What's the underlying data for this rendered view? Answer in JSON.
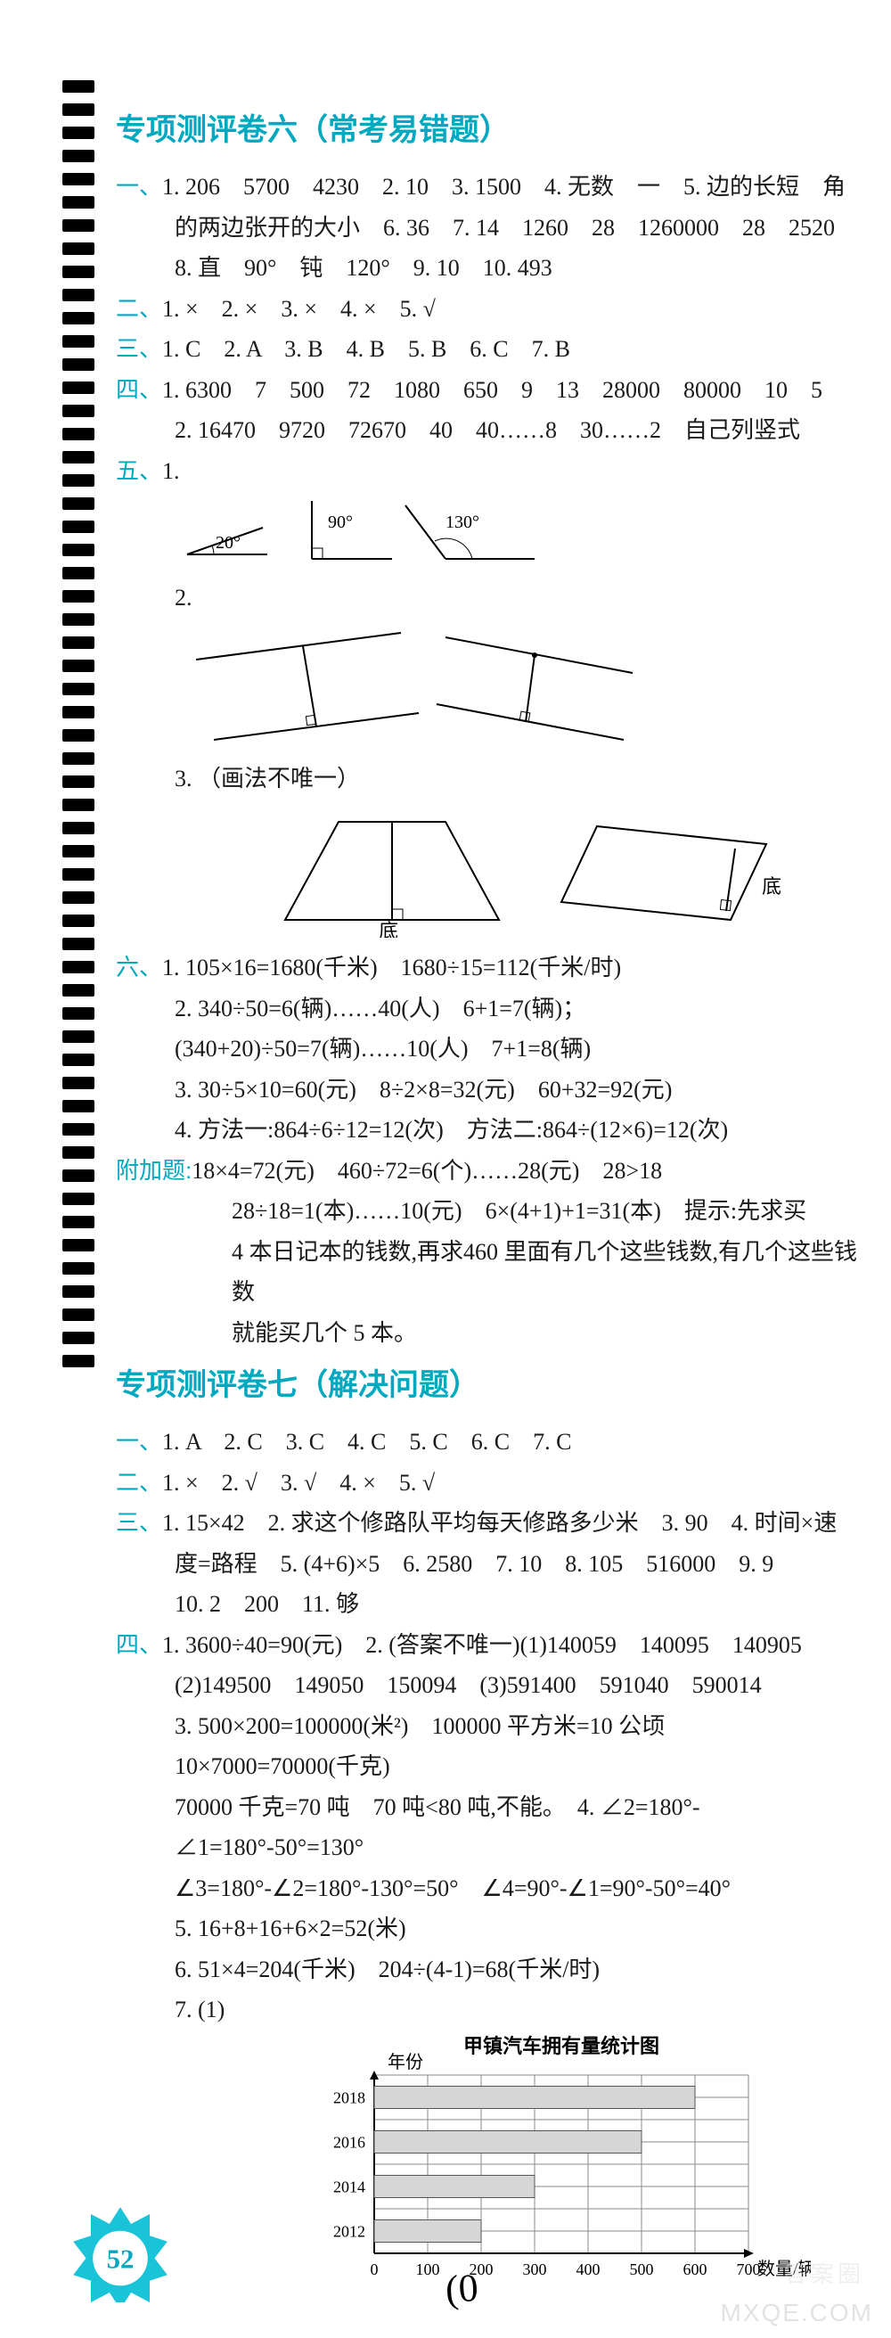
{
  "colors": {
    "accent": "#00a8c0",
    "text": "#1a1a1a",
    "bg": "#ffffff",
    "watermark": "#cccccc",
    "shade": "#d6d6d6"
  },
  "section6": {
    "title": "专项测评卷六（常考易错题）",
    "q1": {
      "label": "一、",
      "l1": "1. 206　5700　4230　2. 10　3. 1500　4. 无数　一　5. 边的长短　角",
      "l2": "的两边张开的大小　6. 36　7. 14　1260　28　1260000　28　2520",
      "l3": "8. 直　90°　钝　120°　9. 10　10. 493"
    },
    "q2": {
      "label": "二、",
      "text": "1. ×　2. ×　3. ×　4. ×　5. √"
    },
    "q3": {
      "label": "三、",
      "text": "1. C　2. A　3. B　4. B　5. B　6. C　7. B"
    },
    "q4": {
      "label": "四、",
      "l1": "1. 6300　7　500　72　1080　650　9　13　28000　80000　10　5",
      "l2": "2. 16470　9720　72670　40　40……8　30……2　自己列竖式"
    },
    "q5": {
      "label": "五、",
      "item1": "1.",
      "angles": {
        "a1": "20°",
        "a2": "90°",
        "a3": "130°"
      },
      "item2": "2.",
      "item3": "3. （画法不唯一）",
      "base": "底"
    },
    "q6": {
      "label": "六、",
      "l1": "1. 105×16=1680(千米)　1680÷15=112(千米/时)",
      "l2": "2. 340÷50=6(辆)……40(人)　6+1=7(辆)；",
      "l3": "(340+20)÷50=7(辆)……10(人)　7+1=8(辆)",
      "l4": "3. 30÷5×10=60(元)　8÷2×8=32(元)　60+32=92(元)",
      "l5": "4. 方法一:864÷6÷12=12(次)　方法二:864÷(12×6)=12(次)"
    },
    "extra": {
      "label": "附加题:",
      "l1": "18×4=72(元)　460÷72=6(个)……28(元)　28>18",
      "l2": "28÷18=1(本)……10(元)　6×(4+1)+1=31(本)　提示:先求买",
      "l3": "4 本日记本的钱数,再求460 里面有几个这些钱数,有几个这些钱数",
      "l4": "就能买几个 5 本。"
    }
  },
  "section7": {
    "title": "专项测评卷七（解决问题）",
    "q1": {
      "label": "一、",
      "text": "1. A　2. C　3. C　4. C　5. C　6. C　7. C"
    },
    "q2": {
      "label": "二、",
      "text": "1. ×　2. √　3. √　4. ×　5. √"
    },
    "q3": {
      "label": "三、",
      "l1": "1. 15×42　2. 求这个修路队平均每天修路多少米　3. 90　4. 时间×速",
      "l2": "度=路程　5. (4+6)×5　6. 2580　7. 10　8. 105　516000　9. 9",
      "l3": "10. 2　200　11. 够"
    },
    "q4": {
      "label": "四、",
      "l1": "1. 3600÷40=90(元)　2. (答案不唯一)(1)140059　140095　140905",
      "l2": "(2)149500　149050　150094　(3)591400　591040　590014",
      "l3": "3. 500×200=100000(米²)　100000 平方米=10 公顷　10×7000=70000(千克)",
      "l4": "70000 千克=70 吨　70 吨<80 吨,不能。　4. ∠2=180°-∠1=180°-50°=130°",
      "l5": "∠3=180°-∠2=180°-130°=50°　∠4=90°-∠1=90°-50°=40°",
      "l6": "5. 16+8+16+6×2=52(米)",
      "l7": "6. 51×4=204(千米)　204÷(4-1)=68(千米/时)",
      "l8": "7. (1)"
    },
    "chart": {
      "title": "甲镇汽车拥有量统计图",
      "ylabel": "年份",
      "xlabel": "数量/辆",
      "x_ticks": [
        "0",
        "100",
        "200",
        "300",
        "400",
        "500",
        "600",
        "700"
      ],
      "y_ticks": [
        "2018",
        "2016",
        "2014",
        "2012"
      ],
      "xlim": [
        0,
        700
      ],
      "xtick_step": 100,
      "bars": [
        {
          "year": "2018",
          "value": 600
        },
        {
          "year": "2016",
          "value": 500
        },
        {
          "year": "2014",
          "value": 300
        },
        {
          "year": "2012",
          "value": 200
        }
      ],
      "bar_fill": "#d6d6d6",
      "grid_color": "#888888",
      "bg": "#ffffff"
    }
  },
  "badge_number": "52",
  "handwritten": "(0",
  "watermark": "MXQE.COM",
  "watermark2": "答案圈"
}
